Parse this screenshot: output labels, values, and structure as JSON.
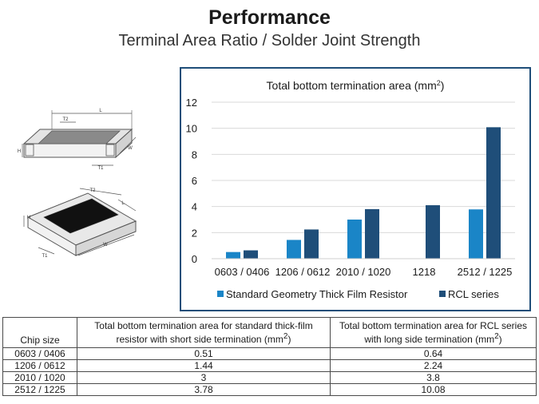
{
  "header": {
    "title": "Performance",
    "subtitle": "Terminal Area Ratio / Solder Joint Strength"
  },
  "diagrams": {
    "top_labels": [
      "L",
      "T2",
      "H",
      "T1",
      "W"
    ],
    "bottom_labels": [
      "T2",
      "L",
      "H",
      "W",
      "T1"
    ]
  },
  "chart_data": {
    "type": "bar",
    "title": "Total bottom termination area  (mm",
    "title_sup": "2",
    "title_end": ")",
    "categories": [
      "0603 / 0406",
      "1206 / 0612",
      "2010 / 1020",
      "1218",
      "2512 / 1225"
    ],
    "series": [
      {
        "name": "Standard Geometry Thick Film Resistor",
        "color": "#1a85c7",
        "values": [
          0.51,
          1.44,
          3.0,
          null,
          3.78
        ]
      },
      {
        "name": "RCL series",
        "color": "#1f4e79",
        "values": [
          0.64,
          2.24,
          3.8,
          4.1,
          10.08
        ]
      }
    ],
    "ylim": [
      0,
      12
    ],
    "yticks": [
      "0",
      "2",
      "4",
      "6",
      "8",
      "10",
      "12"
    ],
    "grid": true,
    "legend": "bottom"
  },
  "table": {
    "headers": [
      "Chip size",
      "Total bottom termination area for standard thick-film resistor with short side termination (mm",
      "Total bottom termination area for RCL series with long side termination (mm"
    ],
    "unit_sup": "2",
    "unit_end": ")",
    "rows": [
      [
        "0603 / 0406",
        "0.51",
        "0.64"
      ],
      [
        "1206 / 0612",
        "1.44",
        "2.24"
      ],
      [
        "2010 / 1020",
        "3",
        "3.8"
      ],
      [
        "2512 / 1225",
        "3.78",
        "10.08"
      ]
    ]
  }
}
